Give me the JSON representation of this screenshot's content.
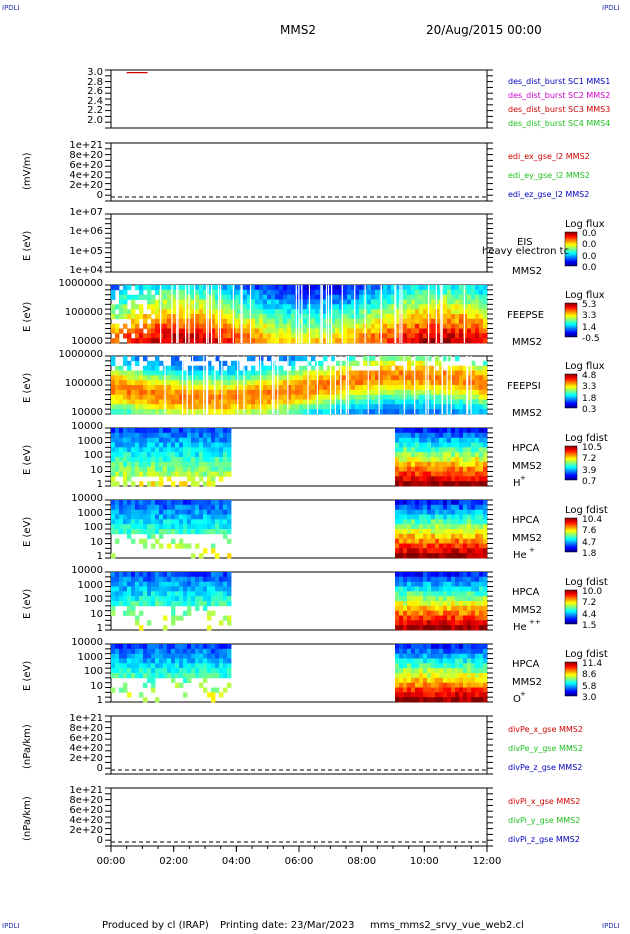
{
  "corners": {
    "label": "IPDLI"
  },
  "header": {
    "spacecraft": "MMS2",
    "date": "20/Aug/2015 00:00"
  },
  "footer": {
    "produced_by": "Produced by cl (IRAP)",
    "printing_date": "Printing date: 23/Mar/2023",
    "file": "mms_mms2_srvy_vue_web2.cl"
  },
  "colors": {
    "red": "#d00000",
    "green": "#20c020",
    "blue": "#0000c0",
    "magenta": "#d000d0"
  },
  "chart_data": [
    {
      "type": "line",
      "panel": "burst",
      "ylabel": "",
      "yticks": [
        "3.0",
        "2.8",
        "2.6",
        "2.4",
        "2.2",
        "2.0"
      ],
      "ylim": [
        1.95,
        3.05
      ],
      "legend": [
        {
          "text": "des_dist_burst SC1 MMS1",
          "color": "blue"
        },
        {
          "text": "des_dist_burst SC2 MMS2",
          "color": "magenta"
        },
        {
          "text": "des_dist_burst SC3 MMS3",
          "color": "red"
        },
        {
          "text": "des_dist_burst SC4 MMS4",
          "color": "green"
        }
      ],
      "series": [
        {
          "color": "red",
          "x": [
            "00:30",
            "01:10"
          ],
          "values": [
            3.0,
            3.0
          ]
        }
      ]
    },
    {
      "type": "line",
      "panel": "edi",
      "ylabel": "(mV/m)",
      "yticks": [
        "1e+21",
        "8e+20",
        "6e+20",
        "4e+20",
        "2e+20",
        "0"
      ],
      "ylim": [
        0,
        1e+21
      ],
      "legend": [
        {
          "text": "edi_ex_gse_l2 MMS2",
          "color": "red"
        },
        {
          "text": "edi_ey_gse_l2 MMS2",
          "color": "green"
        },
        {
          "text": "edi_ez_gse_l2 MMS2",
          "color": "blue"
        }
      ]
    },
    {
      "type": "heatmap",
      "panel": "eis",
      "ylabel": "E (eV)",
      "yticks": [
        "1e+07",
        "1e+06",
        "1e+05",
        "1e+04"
      ],
      "side": [
        "EIS",
        "MMS2"
      ],
      "overlay_label": "heavy electron tc",
      "colorbar": {
        "title": "Log flux",
        "ticks": [
          "0.0",
          "0.0",
          "0.0",
          "0.0"
        ]
      }
    },
    {
      "type": "heatmap",
      "panel": "feeps_e",
      "ylabel": "E (eV)",
      "yticks": [
        "1000000",
        "100000",
        "10000"
      ],
      "side": [
        "FEEPSE",
        "MMS2"
      ],
      "colorbar": {
        "title": "Log flux",
        "ticks": [
          "5.3",
          "3.3",
          "1.4",
          "-0.5"
        ]
      }
    },
    {
      "type": "heatmap",
      "panel": "feeps_i",
      "ylabel": "E (eV)",
      "yticks": [
        "1000000",
        "100000",
        "10000"
      ],
      "side": [
        "FEEPSI",
        "MMS2"
      ],
      "colorbar": {
        "title": "Log flux",
        "ticks": [
          "4.8",
          "3.3",
          "1.8",
          "0.3"
        ]
      }
    },
    {
      "type": "heatmap",
      "panel": "hpca_h",
      "ylabel": "E (eV)",
      "yticks": [
        "10000",
        "1000",
        "100",
        "10",
        "1"
      ],
      "side": [
        "HPCA",
        "MMS2"
      ],
      "species": "H",
      "species_sup": "+",
      "colorbar": {
        "title": "Log fdist",
        "ticks": [
          "10.5",
          "7.2",
          "3.9",
          "0.7"
        ]
      }
    },
    {
      "type": "heatmap",
      "panel": "hpca_he",
      "ylabel": "E (eV)",
      "yticks": [
        "10000",
        "1000",
        "100",
        "10",
        "1"
      ],
      "side": [
        "HPCA",
        "MMS2"
      ],
      "species": "He",
      "species_sup": "+",
      "colorbar": {
        "title": "Log fdist",
        "ticks": [
          "10.4",
          "7.6",
          "4.7",
          "1.8"
        ]
      }
    },
    {
      "type": "heatmap",
      "panel": "hpca_he2",
      "ylabel": "E (eV)",
      "yticks": [
        "10000",
        "1000",
        "100",
        "10",
        "1"
      ],
      "side": [
        "HPCA",
        "MMS2"
      ],
      "species": "He",
      "species_sup": "++",
      "colorbar": {
        "title": "Log fdist",
        "ticks": [
          "10.0",
          "7.2",
          "4.4",
          "1.5"
        ]
      }
    },
    {
      "type": "heatmap",
      "panel": "hpca_o",
      "ylabel": "E (eV)",
      "yticks": [
        "10000",
        "1000",
        "100",
        "10",
        "1"
      ],
      "side": [
        "HPCA",
        "MMS2"
      ],
      "species": "O",
      "species_sup": "+",
      "colorbar": {
        "title": "Log fdist",
        "ticks": [
          "11.4",
          "8.6",
          "5.8",
          "3.0"
        ]
      }
    },
    {
      "type": "line",
      "panel": "divpe",
      "ylabel": "(nPa/km)",
      "yticks": [
        "1e+21",
        "8e+20",
        "6e+20",
        "4e+20",
        "2e+20",
        "0"
      ],
      "ylim": [
        0,
        1e+21
      ],
      "legend": [
        {
          "text": "divPe_x_gse MMS2",
          "color": "red"
        },
        {
          "text": "divPe_y_gse MMS2",
          "color": "green"
        },
        {
          "text": "divPe_z_gse MMS2",
          "color": "blue"
        }
      ]
    },
    {
      "type": "line",
      "panel": "divpi",
      "ylabel": "(nPa/km)",
      "yticks": [
        "1e+21",
        "8e+20",
        "6e+20",
        "4e+20",
        "2e+20",
        "0"
      ],
      "ylim": [
        0,
        1e+21
      ],
      "legend": [
        {
          "text": "divPi_x_gse MMS2",
          "color": "red"
        },
        {
          "text": "divPi_y_gse MMS2",
          "color": "green"
        },
        {
          "text": "divPi_z_gse MMS2",
          "color": "blue"
        }
      ]
    }
  ],
  "xaxis": {
    "ticks": [
      "00:00",
      "02:00",
      "04:00",
      "06:00",
      "08:00",
      "10:00",
      "12:00"
    ]
  }
}
